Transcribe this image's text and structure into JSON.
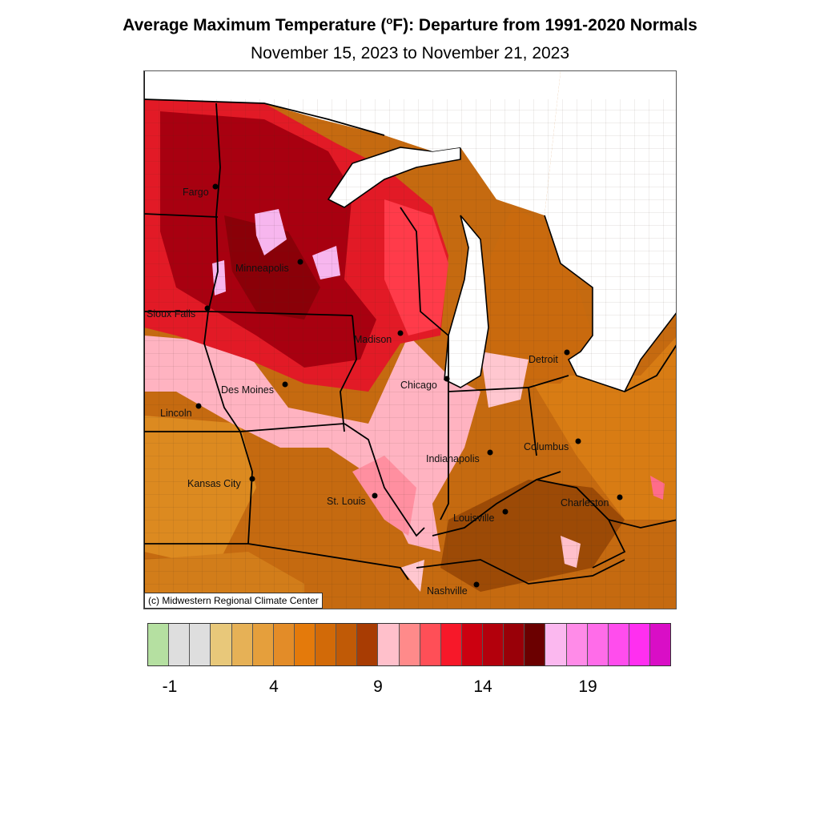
{
  "title": {
    "main": "Average Maximum Temperature (",
    "degree": "o",
    "unit": "F): Departure from 1991-2020 Normals"
  },
  "subtitle": "November 15, 2023 to November 21, 2023",
  "copyright": "(c) Midwestern Regional Climate Center",
  "cities": [
    {
      "name": "Fargo"
    },
    {
      "name": "Minneapolis"
    },
    {
      "name": "Sioux Falls"
    },
    {
      "name": "Madison"
    },
    {
      "name": "Detroit"
    },
    {
      "name": "Des Moines"
    },
    {
      "name": "Chicago"
    },
    {
      "name": "Lincoln"
    },
    {
      "name": "Columbus"
    },
    {
      "name": "Indianapolis"
    },
    {
      "name": "Kansas City"
    },
    {
      "name": "St. Louis"
    },
    {
      "name": "Charleston"
    },
    {
      "name": "Louisville"
    },
    {
      "name": "Nashville"
    }
  ],
  "legend": {
    "colors": [
      "#b5e0a1",
      "#dedede",
      "#dedede",
      "#e8c87a",
      "#e6b156",
      "#e59f3c",
      "#e38c28",
      "#e47a0b",
      "#d26a08",
      "#c05a06",
      "#a83c03",
      "#ffc0cb",
      "#ff8a8a",
      "#ff4f57",
      "#f71829",
      "#cc0010",
      "#b3000c",
      "#990008",
      "#6b0000",
      "#fbb8ef",
      "#ff8be8",
      "#ff6ce9",
      "#ff4ded",
      "#ff2ff0",
      "#d90ec6"
    ],
    "tick_labels": [
      "-1",
      "4",
      "9",
      "14",
      "19"
    ],
    "units": "°F departure"
  },
  "colors": {
    "frame": "#555555",
    "water": "#ffffff",
    "state_line": "#000000",
    "county_line": "#3a2a1a"
  }
}
